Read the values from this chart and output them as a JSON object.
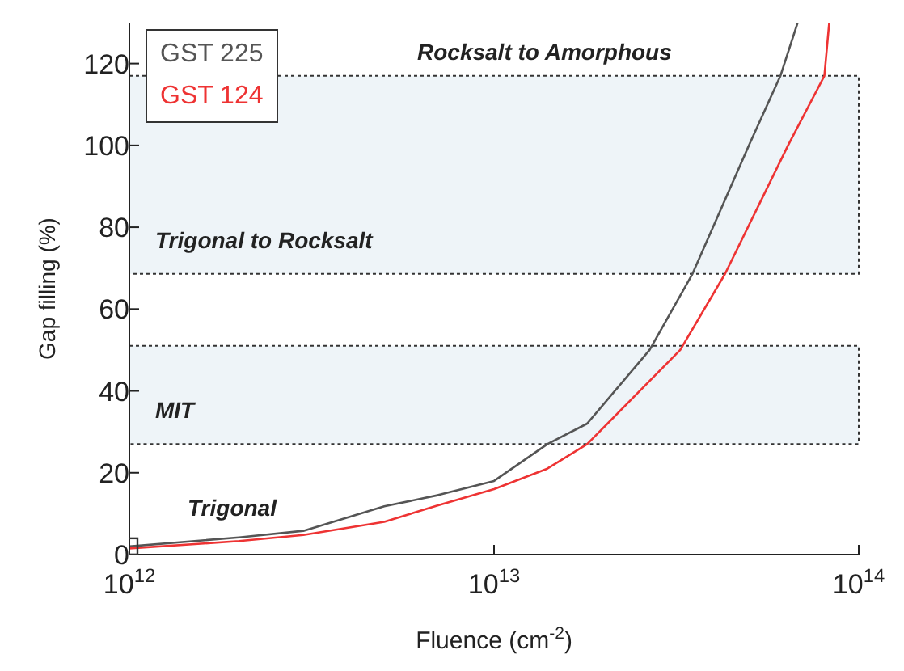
{
  "chart_data": {
    "type": "line",
    "xlabel": "Fluence (cm$^{-2}$)",
    "ylabel": "Gap filling (%)",
    "log": "x",
    "xlim": [
      1000000000000.0,
      100000000000000.0
    ],
    "xticks": [
      {
        "value": 1000000000000.0,
        "label": "10$^{12}$"
      },
      {
        "value": 10000000000000.0,
        "label": "10$^{13}$"
      },
      {
        "value": 100000000000000.0,
        "label": "10$^{14}$"
      }
    ],
    "ylim": [
      0,
      130
    ],
    "yticks": [
      0,
      20,
      40,
      60,
      80,
      100,
      120
    ],
    "grid": false,
    "legend": "top left",
    "line_style": "solid",
    "series": [
      {
        "name": "GST 225",
        "color": "#555555",
        "x": [
          1000000000000.0,
          2000000000000.0,
          3000000000000.0,
          5000000000000.0,
          7000000000000.0,
          10000000000000.0,
          14000000000000.0,
          18000000000000.0,
          26700000000000.0,
          35000000000000.0,
          50000000000000.0,
          61000000000000.0,
          68000000000000.0
        ],
        "values": [
          2,
          4.2,
          5.8,
          11.8,
          14.5,
          18,
          27,
          32,
          50,
          68.6,
          100,
          117,
          130
        ]
      },
      {
        "name": "GST 124",
        "color": "#ee3333",
        "x": [
          1000000000000.0,
          2000000000000.0,
          3000000000000.0,
          5000000000000.0,
          7000000000000.0,
          10000000000000.0,
          14000000000000.0,
          18000000000000.0,
          32400000000000.0,
          43000000000000.0,
          64000000000000.0,
          80500000000000.0,
          83000000000000.0
        ],
        "values": [
          1.5,
          3.3,
          4.8,
          8,
          12,
          16,
          21,
          27,
          50,
          68.6,
          100,
          117,
          130
        ]
      },
      {
        "type": "scatter",
        "marker": "square",
        "color": "#333333",
        "x": [
          1000000000000.0
        ],
        "values": [
          2
        ]
      }
    ],
    "bands": [
      {
        "axis": "y",
        "from": 68.6,
        "to": 117,
        "label": "Trigonal to Rocksalt",
        "color": "#eef4f8"
      },
      {
        "axis": "y",
        "from": 27,
        "to": 51,
        "label": "MIT",
        "color": "#eef4f8"
      }
    ],
    "annotations": [
      "Rocksalt to Amorphous",
      "Trigonal"
    ]
  }
}
